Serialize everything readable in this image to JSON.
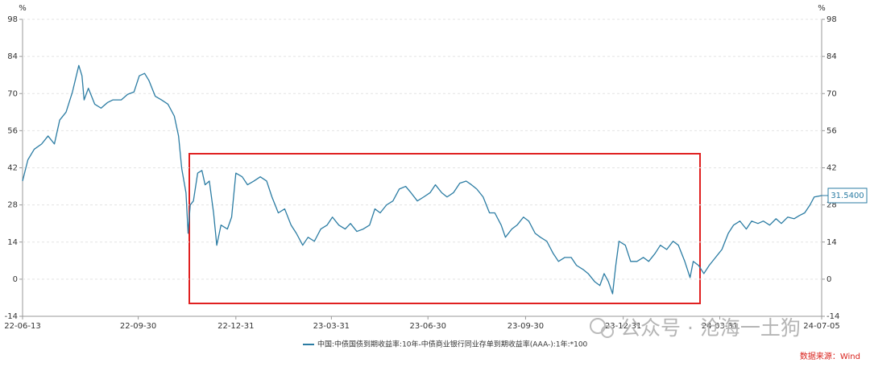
{
  "chart_data": {
    "type": "line",
    "unit_left": "%",
    "unit_right": "%",
    "xlim": [
      "22-06-13",
      "24-07-05"
    ],
    "xticks": [
      "22-06-13",
      "22-09-30",
      "22-12-31",
      "23-03-31",
      "23-06-30",
      "23-09-30",
      "23-12-31",
      "24-03-31",
      "24-07-05"
    ],
    "ylim": [
      -14,
      98
    ],
    "yticks": [
      -14,
      0,
      14,
      28,
      42,
      56,
      70,
      84,
      98
    ],
    "y2lim": [
      -14,
      98
    ],
    "y2ticks": [
      -14,
      0,
      14,
      28,
      42,
      56,
      70,
      84,
      98
    ],
    "grid": true,
    "x": [
      "22-06-13",
      "22-06-18",
      "22-06-24",
      "22-07-01",
      "22-07-07",
      "22-07-13",
      "22-07-18",
      "22-07-24",
      "22-07-30",
      "22-08-05",
      "22-08-08",
      "22-08-10",
      "22-08-14",
      "22-08-20",
      "22-08-26",
      "22-09-01",
      "22-09-06",
      "22-09-14",
      "22-09-20",
      "22-09-26",
      "22-10-01",
      "22-10-06",
      "22-10-10",
      "22-10-16",
      "22-10-22",
      "22-10-28",
      "22-11-03",
      "22-11-07",
      "22-11-10",
      "22-11-14",
      "22-11-16",
      "22-11-18",
      "22-11-21",
      "22-11-25",
      "22-11-29",
      "22-12-02",
      "22-12-06",
      "22-12-10",
      "22-12-13",
      "22-12-17",
      "22-12-23",
      "22-12-27",
      "22-12-31",
      "23-01-06",
      "23-01-11",
      "23-01-17",
      "23-01-23",
      "23-01-29",
      "23-02-03",
      "23-02-09",
      "23-02-15",
      "23-02-21",
      "23-02-26",
      "23-03-04",
      "23-03-09",
      "23-03-15",
      "23-03-21",
      "23-03-27",
      "23-04-01",
      "23-04-07",
      "23-04-13",
      "23-04-18",
      "23-04-24",
      "23-04-30",
      "23-05-06",
      "23-05-11",
      "23-05-16",
      "23-05-22",
      "23-05-28",
      "23-06-03",
      "23-06-09",
      "23-06-14",
      "23-06-20",
      "23-06-26",
      "23-07-02",
      "23-07-07",
      "23-07-13",
      "23-07-18",
      "23-07-24",
      "23-07-30",
      "23-08-05",
      "23-08-10",
      "23-08-15",
      "23-08-21",
      "23-08-27",
      "23-09-01",
      "23-09-07",
      "23-09-11",
      "23-09-17",
      "23-09-22",
      "23-09-28",
      "23-10-03",
      "23-10-09",
      "23-10-14",
      "23-10-20",
      "23-10-26",
      "23-10-31",
      "23-11-06",
      "23-11-12",
      "23-11-17",
      "23-11-23",
      "23-11-28",
      "23-12-04",
      "23-12-09",
      "23-12-13",
      "23-12-17",
      "23-12-21",
      "23-12-24",
      "23-12-27",
      "24-01-02",
      "24-01-07",
      "24-01-13",
      "24-01-19",
      "24-01-24",
      "24-01-30",
      "24-02-04",
      "24-02-10",
      "24-02-16",
      "24-02-21",
      "24-02-27",
      "24-03-03",
      "24-03-06",
      "24-03-11",
      "24-03-16",
      "24-03-21",
      "24-03-27",
      "24-04-02",
      "24-04-08",
      "24-04-13",
      "24-04-19",
      "24-04-25",
      "24-04-30",
      "24-05-06",
      "24-05-11",
      "24-05-17",
      "24-05-23",
      "24-05-28",
      "24-06-03",
      "24-06-09",
      "24-06-14",
      "24-06-19",
      "24-06-24",
      "24-06-28",
      "24-07-05"
    ],
    "series": [
      {
        "name": "中国:中债国债到期收益率:10年-中债商业银行同业存单到期收益率(AAA-):1年:*100",
        "color": "#2b7ca3",
        "values": [
          37,
          45,
          49,
          51,
          54,
          51,
          60,
          63,
          70.6,
          80.6,
          76.7,
          67.6,
          72,
          66,
          64.5,
          66.6,
          67.6,
          67.6,
          69.7,
          70.6,
          76.7,
          77.6,
          75,
          69,
          67.6,
          66,
          61.5,
          54,
          41.7,
          32.6,
          17.3,
          28,
          29.5,
          40,
          41,
          35.6,
          37,
          25,
          12.8,
          20.4,
          18.9,
          23.4,
          40,
          38.6,
          35.6,
          37,
          38.6,
          37,
          31,
          25,
          26.5,
          20.4,
          17.3,
          12.8,
          15.8,
          14.3,
          18.9,
          20.4,
          23.4,
          20.4,
          18.9,
          21,
          18,
          18.9,
          20.4,
          26.5,
          25,
          28,
          29.5,
          34,
          35,
          32.6,
          29.5,
          31,
          32.6,
          35.6,
          32.6,
          31,
          32.6,
          36.2,
          37,
          35.6,
          34,
          31,
          25,
          25,
          20.4,
          15.8,
          18.9,
          20.4,
          23.4,
          21.9,
          17.3,
          15.8,
          14.3,
          9.7,
          6.7,
          8.2,
          8.2,
          5.2,
          3.7,
          2.1,
          -0.9,
          -2.4,
          2.1,
          -0.9,
          -5.5,
          5.2,
          14.3,
          12.8,
          6.7,
          6.7,
          8.2,
          6.7,
          9.7,
          12.8,
          11.2,
          14.3,
          12.8,
          6.7,
          0.6,
          6.7,
          5.2,
          2.1,
          5.2,
          8.2,
          11.2,
          17.3,
          20.4,
          21.9,
          18.9,
          21.9,
          21,
          21.9,
          20.4,
          22.8,
          21,
          23.4,
          22.8,
          24,
          25,
          28,
          31,
          31.54
        ],
        "value_labels": [
          null,
          null,
          null,
          null,
          null,
          null,
          null,
          null,
          null,
          null,
          null,
          null,
          null,
          null,
          null,
          null,
          null,
          null,
          null,
          null,
          null,
          null,
          null,
          null,
          null,
          null,
          null,
          null,
          null,
          null,
          null,
          null,
          null,
          null,
          null,
          null,
          null,
          null,
          null,
          null,
          null,
          null,
          null,
          null,
          null,
          null,
          null,
          null,
          null,
          null,
          null,
          null,
          null,
          null,
          null,
          null,
          null,
          null,
          null,
          null,
          null,
          null,
          null,
          null,
          null,
          null,
          null,
          null,
          null,
          null,
          null,
          null,
          null,
          null,
          null,
          null,
          null,
          null,
          null,
          null,
          null,
          null,
          null,
          null,
          null,
          null,
          null,
          null,
          null,
          null,
          null,
          null,
          null,
          null,
          null,
          null,
          null,
          null,
          null,
          null,
          null,
          null,
          null,
          null,
          null,
          null,
          null,
          null,
          null,
          null,
          null,
          null,
          null,
          null,
          null,
          null,
          null,
          null,
          null,
          null,
          null,
          null,
          null,
          null,
          null,
          null,
          null,
          null,
          null,
          null,
          null,
          null,
          null,
          null,
          null,
          null,
          null,
          null,
          null,
          null,
          null,
          null,
          null,
          "31.5400"
        ]
      }
    ],
    "source": "数据来源：Wind",
    "watermark": "公众号 · 沧海一土狗"
  }
}
